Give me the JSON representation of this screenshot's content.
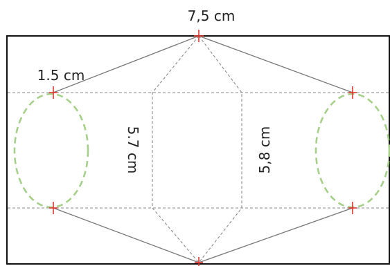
{
  "labels": {
    "top_width": "7,5 cm",
    "left_small": "1.5 cm",
    "inner_left_height": "5.7 cm",
    "inner_right_height": "5,8 cm"
  },
  "colors": {
    "ellipse": "#a6cf8a",
    "tick": "#e0342c"
  }
}
